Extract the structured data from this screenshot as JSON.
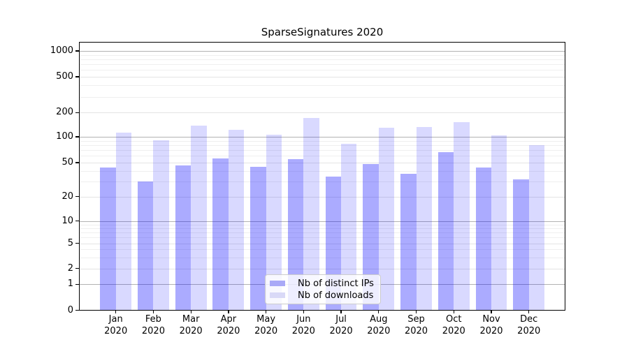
{
  "chart_data": {
    "type": "bar",
    "title": "SparseSignatures 2020",
    "categories": [
      "Jan",
      "Feb",
      "Mar",
      "Apr",
      "May",
      "Jun",
      "Jul",
      "Aug",
      "Sep",
      "Oct",
      "Nov",
      "Dec"
    ],
    "category_year": "2020",
    "series": [
      {
        "name": "Nb of distinct IPs",
        "color": "rgba(0,0,255,0.33)",
        "legend_swatch_hex": "#a9a9f7",
        "values": [
          44,
          30,
          46,
          56,
          45,
          55,
          34,
          48,
          37,
          66,
          44,
          32
        ]
      },
      {
        "name": "Nb of downloads",
        "color": "rgba(0,0,255,0.15)",
        "legend_swatch_hex": "#d9d9f7",
        "values": [
          112,
          91,
          137,
          123,
          107,
          170,
          83,
          130,
          132,
          153,
          105,
          80
        ]
      }
    ],
    "xlabel": "",
    "ylabel": "",
    "yscale": "symlog",
    "ylim": [
      0,
      1200
    ],
    "yticks": [
      0,
      1,
      2,
      5,
      10,
      20,
      50,
      100,
      200,
      500,
      1000
    ],
    "ytick_labels": [
      "0",
      "1",
      "2",
      "5",
      "10",
      "20",
      "50",
      "100",
      "200",
      "500",
      "1000"
    ],
    "grid": true,
    "legend_position": "lower center"
  }
}
